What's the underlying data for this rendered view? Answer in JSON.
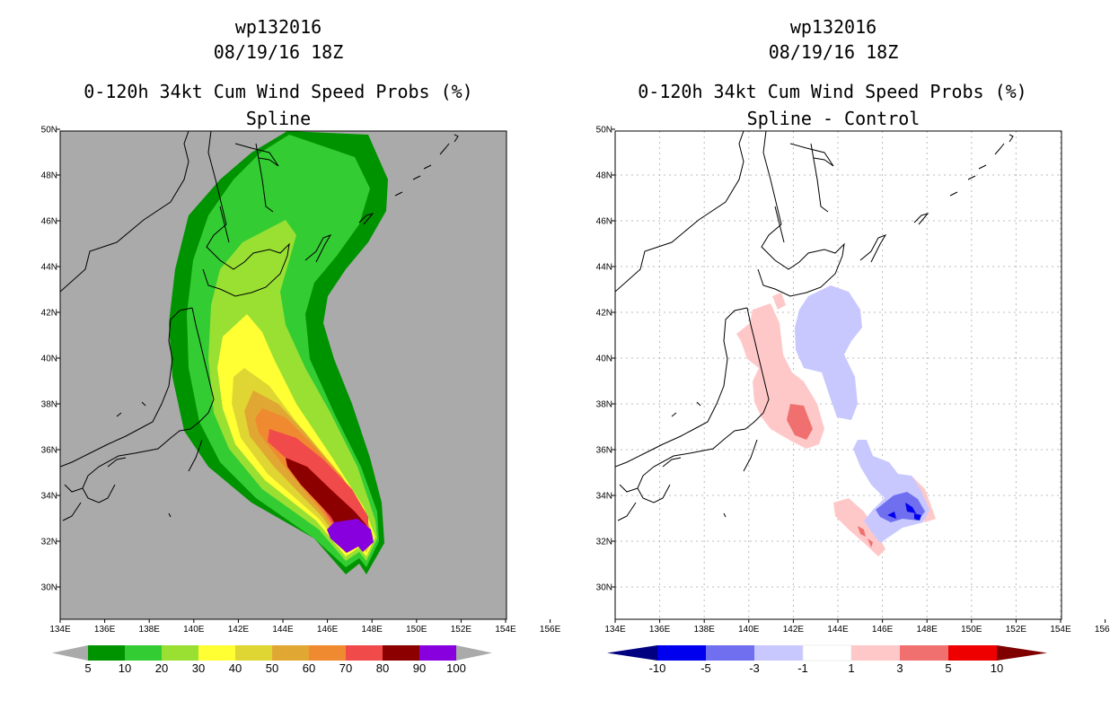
{
  "left_panel": {
    "title_line1": "wp132016",
    "title_line2": "08/19/16 18Z",
    "title_line3": "0-120h 34kt Cum Wind Speed Probs (%)",
    "title_line4": "Spline",
    "colorbar": {
      "labels": [
        "5",
        "10",
        "20",
        "30",
        "40",
        "50",
        "60",
        "70",
        "80",
        "90",
        "100"
      ],
      "colors": [
        "#009300",
        "#33cc33",
        "#99e033",
        "#ffff33",
        "#e0d633",
        "#e0a833",
        "#f08a30",
        "#f04a4a",
        "#8c0000",
        "#8800dd"
      ]
    }
  },
  "right_panel": {
    "title_line1": "wp132016",
    "title_line2": "08/19/16 18Z",
    "title_line3": "0-120h 34kt Cum Wind Speed Probs (%)",
    "title_line4": "Spline - Control",
    "colorbar": {
      "labels": [
        "-10",
        "-5",
        "-3",
        "-1",
        "1",
        "3",
        "5",
        "10"
      ],
      "colors": [
        "#000080",
        "#0000ee",
        "#6f6ff0",
        "#c8c8ff",
        "#ffffff",
        "#ffc8c8",
        "#f07070",
        "#ee0000",
        "#800000"
      ]
    }
  },
  "axes": {
    "lat_labels": [
      "30N",
      "32N",
      "34N",
      "36N",
      "38N",
      "40N",
      "42N",
      "44N",
      "46N",
      "48N",
      "50N"
    ],
    "lon_labels": [
      "134E",
      "136E",
      "138E",
      "140E",
      "142E",
      "144E",
      "146E",
      "148E",
      "150E",
      "152E",
      "154E",
      "156E"
    ]
  },
  "colors": {
    "map_bg_left": "#aaaaaa",
    "map_bg_right": "#ffffff",
    "grid": "#bbbbbb"
  }
}
